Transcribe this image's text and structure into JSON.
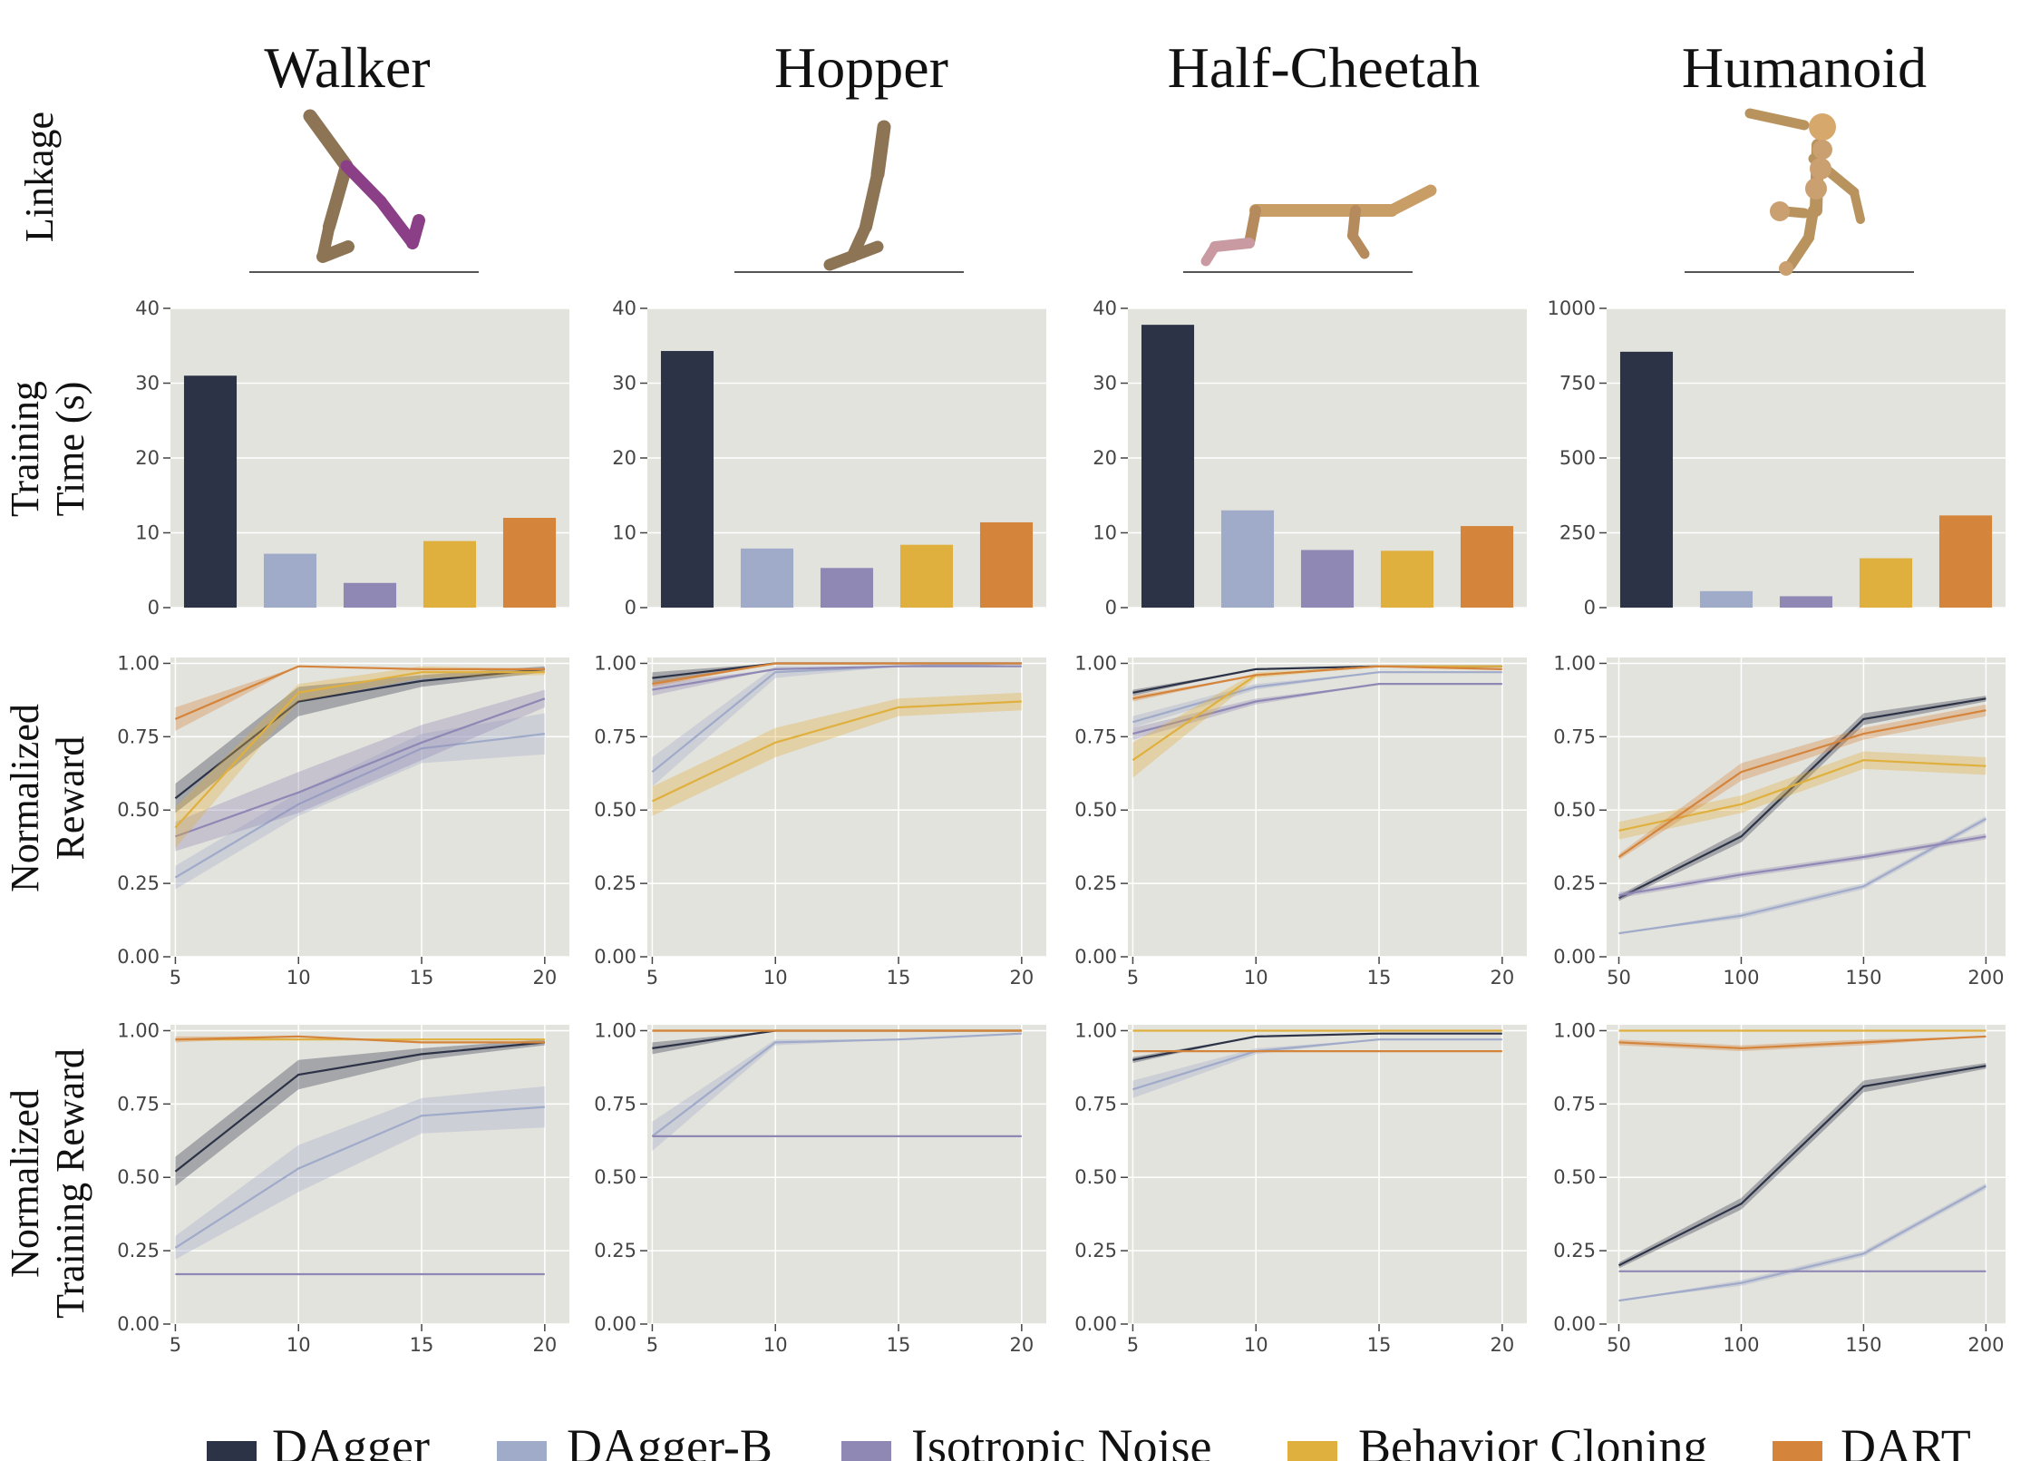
{
  "environments": [
    "Walker",
    "Hopper",
    "Half-Cheetah",
    "Humanoid"
  ],
  "row_labels": {
    "linkage": [
      "Linkage"
    ],
    "time": [
      "Training",
      "Time (s)"
    ],
    "reward": [
      "Normalized",
      "Reward"
    ],
    "train": [
      "Normalized",
      "Training Reward"
    ]
  },
  "methods": [
    "DAgger",
    "DAgger-B",
    "Isotropic Noise",
    "Behavior Cloning",
    "DART"
  ],
  "colors": {
    "DAgger": "#2d3347",
    "DAgger-B": "#a0aac9",
    "Isotropic Noise": "#8f88b5",
    "Behavior Cloning": "#e0b03e",
    "DART": "#d4843b",
    "panel_bg": "#e3e3dd",
    "grid": "#ffffff"
  },
  "chart_data": [
    {
      "type": "bar",
      "environment": "Walker",
      "metric": "Training Time (s)",
      "categories": [
        "DAgger",
        "DAgger-B",
        "Isotropic Noise",
        "Behavior Cloning",
        "DART"
      ],
      "values": [
        31,
        7.2,
        3.3,
        8.9,
        12
      ],
      "ylim": [
        0,
        40
      ],
      "yticks": [
        0,
        10,
        20,
        30,
        40
      ]
    },
    {
      "type": "bar",
      "environment": "Hopper",
      "metric": "Training Time (s)",
      "categories": [
        "DAgger",
        "DAgger-B",
        "Isotropic Noise",
        "Behavior Cloning",
        "DART"
      ],
      "values": [
        34.3,
        7.9,
        5.3,
        8.4,
        11.4
      ],
      "ylim": [
        0,
        40
      ],
      "yticks": [
        0,
        10,
        20,
        30,
        40
      ]
    },
    {
      "type": "bar",
      "environment": "Half-Cheetah",
      "metric": "Training Time (s)",
      "categories": [
        "DAgger",
        "DAgger-B",
        "Isotropic Noise",
        "Behavior Cloning",
        "DART"
      ],
      "values": [
        37.8,
        13,
        7.7,
        7.6,
        10.9
      ],
      "ylim": [
        0,
        40
      ],
      "yticks": [
        0,
        10,
        20,
        30,
        40
      ]
    },
    {
      "type": "bar",
      "environment": "Humanoid",
      "metric": "Training Time (s)",
      "categories": [
        "DAgger",
        "DAgger-B",
        "Isotropic Noise",
        "Behavior Cloning",
        "DART"
      ],
      "values": [
        855,
        55,
        38,
        165,
        308
      ],
      "ylim": [
        0,
        1000
      ],
      "yticks": [
        0,
        250,
        500,
        750,
        1000
      ]
    },
    {
      "type": "line",
      "environment": "Walker",
      "metric": "Normalized Reward",
      "x": [
        5,
        10,
        15,
        20
      ],
      "xticks": [
        5,
        10,
        15,
        20
      ],
      "xlim": [
        4.8,
        21
      ],
      "ylim": [
        0,
        1.02
      ],
      "yticks": [
        "0.00",
        "0.25",
        "0.50",
        "0.75",
        "1.00"
      ],
      "series": [
        {
          "name": "DAgger",
          "values": [
            0.54,
            0.87,
            0.94,
            0.98
          ],
          "band": [
            0.05,
            0.05,
            0.02,
            0.01
          ]
        },
        {
          "name": "DAgger-B",
          "values": [
            0.27,
            0.52,
            0.71,
            0.76
          ],
          "band": [
            0.04,
            0.04,
            0.05,
            0.07
          ]
        },
        {
          "name": "Isotropic Noise",
          "values": [
            0.41,
            0.56,
            0.73,
            0.88
          ],
          "band": [
            0.05,
            0.07,
            0.06,
            0.03
          ]
        },
        {
          "name": "Behavior Cloning",
          "values": [
            0.44,
            0.9,
            0.97,
            0.97
          ],
          "band": [
            0.07,
            0.03,
            0.02,
            0.01
          ]
        },
        {
          "name": "DART",
          "values": [
            0.81,
            0.99,
            0.98,
            0.98
          ],
          "band": [
            0.04,
            0.0,
            0.0,
            0.0
          ]
        }
      ]
    },
    {
      "type": "line",
      "environment": "Hopper",
      "metric": "Normalized Reward",
      "x": [
        5,
        10,
        15,
        20
      ],
      "xticks": [
        5,
        10,
        15,
        20
      ],
      "xlim": [
        4.8,
        21
      ],
      "ylim": [
        0,
        1.02
      ],
      "yticks": [
        "0.00",
        "0.25",
        "0.50",
        "0.75",
        "1.00"
      ],
      "series": [
        {
          "name": "DAgger",
          "values": [
            0.95,
            1.0,
            1.0,
            1.0
          ],
          "band": [
            0.02,
            0.0,
            0.0,
            0.0
          ]
        },
        {
          "name": "DAgger-B",
          "values": [
            0.63,
            0.97,
            0.99,
            1.0
          ],
          "band": [
            0.05,
            0.02,
            0.0,
            0.0
          ]
        },
        {
          "name": "Isotropic Noise",
          "values": [
            0.91,
            0.98,
            0.99,
            0.99
          ],
          "band": [
            0.02,
            0.0,
            0.0,
            0.0
          ]
        },
        {
          "name": "Behavior Cloning",
          "values": [
            0.53,
            0.73,
            0.85,
            0.87
          ],
          "band": [
            0.05,
            0.05,
            0.03,
            0.03
          ]
        },
        {
          "name": "DART",
          "values": [
            0.93,
            1.0,
            1.0,
            1.0
          ],
          "band": [
            0.01,
            0.0,
            0.0,
            0.0
          ]
        }
      ]
    },
    {
      "type": "line",
      "environment": "Half-Cheetah",
      "metric": "Normalized Reward",
      "x": [
        5,
        10,
        15,
        20
      ],
      "xticks": [
        5,
        10,
        15,
        20
      ],
      "xlim": [
        4.8,
        21
      ],
      "ylim": [
        0,
        1.02
      ],
      "yticks": [
        "0.00",
        "0.25",
        "0.50",
        "0.75",
        "1.00"
      ],
      "series": [
        {
          "name": "DAgger",
          "values": [
            0.9,
            0.98,
            0.99,
            0.99
          ],
          "band": [
            0.01,
            0.0,
            0.0,
            0.0
          ]
        },
        {
          "name": "DAgger-B",
          "values": [
            0.8,
            0.92,
            0.97,
            0.97
          ],
          "band": [
            0.02,
            0.01,
            0.0,
            0.0
          ]
        },
        {
          "name": "Isotropic Noise",
          "values": [
            0.76,
            0.87,
            0.93,
            0.93
          ],
          "band": [
            0.02,
            0.01,
            0.0,
            0.0
          ]
        },
        {
          "name": "Behavior Cloning",
          "values": [
            0.67,
            0.96,
            0.99,
            0.99
          ],
          "band": [
            0.06,
            0.01,
            0.0,
            0.0
          ]
        },
        {
          "name": "DART",
          "values": [
            0.88,
            0.96,
            0.99,
            0.98
          ],
          "band": [
            0.01,
            0.0,
            0.0,
            0.0
          ]
        }
      ]
    },
    {
      "type": "line",
      "environment": "Humanoid",
      "metric": "Normalized Reward",
      "x": [
        50,
        100,
        150,
        200
      ],
      "xticks": [
        50,
        100,
        150,
        200
      ],
      "xlim": [
        45,
        208
      ],
      "ylim": [
        0,
        1.02
      ],
      "yticks": [
        "0.00",
        "0.25",
        "0.50",
        "0.75",
        "1.00"
      ],
      "series": [
        {
          "name": "DAgger",
          "values": [
            0.2,
            0.41,
            0.81,
            0.88
          ],
          "band": [
            0.01,
            0.02,
            0.02,
            0.01
          ]
        },
        {
          "name": "DAgger-B",
          "values": [
            0.08,
            0.14,
            0.24,
            0.47
          ],
          "band": [
            0.0,
            0.01,
            0.01,
            0.01
          ]
        },
        {
          "name": "Isotropic Noise",
          "values": [
            0.21,
            0.28,
            0.34,
            0.41
          ],
          "band": [
            0.01,
            0.01,
            0.01,
            0.01
          ]
        },
        {
          "name": "Behavior Cloning",
          "values": [
            0.43,
            0.52,
            0.67,
            0.65
          ],
          "band": [
            0.03,
            0.03,
            0.03,
            0.03
          ]
        },
        {
          "name": "DART",
          "values": [
            0.34,
            0.63,
            0.76,
            0.84
          ],
          "band": [
            0.01,
            0.03,
            0.02,
            0.02
          ]
        }
      ]
    },
    {
      "type": "line",
      "environment": "Walker",
      "metric": "Normalized Training Reward",
      "x": [
        5,
        10,
        15,
        20
      ],
      "xticks": [
        5,
        10,
        15,
        20
      ],
      "xlim": [
        4.8,
        21
      ],
      "ylim": [
        0,
        1.02
      ],
      "yticks": [
        "0.00",
        "0.25",
        "0.50",
        "0.75",
        "1.00"
      ],
      "series": [
        {
          "name": "DAgger",
          "values": [
            0.52,
            0.85,
            0.92,
            0.96
          ],
          "band": [
            0.05,
            0.05,
            0.02,
            0.01
          ]
        },
        {
          "name": "DAgger-B",
          "values": [
            0.26,
            0.53,
            0.71,
            0.74
          ],
          "band": [
            0.04,
            0.08,
            0.06,
            0.07
          ]
        },
        {
          "name": "Isotropic Noise",
          "values": [
            0.17,
            0.17,
            0.17,
            0.17
          ],
          "band": [
            0.0,
            0.0,
            0.0,
            0.0
          ]
        },
        {
          "name": "Behavior Cloning",
          "values": [
            0.97,
            0.97,
            0.97,
            0.97
          ],
          "band": [
            0.0,
            0.0,
            0.0,
            0.0
          ]
        },
        {
          "name": "DART",
          "values": [
            0.97,
            0.98,
            0.96,
            0.96
          ],
          "band": [
            0.01,
            0.0,
            0.0,
            0.0
          ]
        }
      ]
    },
    {
      "type": "line",
      "environment": "Hopper",
      "metric": "Normalized Training Reward",
      "x": [
        5,
        10,
        15,
        20
      ],
      "xticks": [
        5,
        10,
        15,
        20
      ],
      "xlim": [
        4.8,
        21
      ],
      "ylim": [
        0,
        1.02
      ],
      "yticks": [
        "0.00",
        "0.25",
        "0.50",
        "0.75",
        "1.00"
      ],
      "series": [
        {
          "name": "DAgger",
          "values": [
            0.94,
            1.0,
            1.0,
            1.0
          ],
          "band": [
            0.02,
            0.0,
            0.0,
            0.0
          ]
        },
        {
          "name": "DAgger-B",
          "values": [
            0.64,
            0.96,
            0.97,
            0.99
          ],
          "band": [
            0.05,
            0.01,
            0.0,
            0.0
          ]
        },
        {
          "name": "Isotropic Noise",
          "values": [
            0.64,
            0.64,
            0.64,
            0.64
          ],
          "band": [
            0.0,
            0.0,
            0.0,
            0.0
          ]
        },
        {
          "name": "Behavior Cloning",
          "values": [
            1.0,
            1.0,
            1.0,
            1.0
          ],
          "band": [
            0.0,
            0.0,
            0.0,
            0.0
          ]
        },
        {
          "name": "DART",
          "values": [
            1.0,
            1.0,
            1.0,
            1.0
          ],
          "band": [
            0.0,
            0.0,
            0.0,
            0.0
          ]
        }
      ]
    },
    {
      "type": "line",
      "environment": "Half-Cheetah",
      "metric": "Normalized Training Reward",
      "x": [
        5,
        10,
        15,
        20
      ],
      "xticks": [
        5,
        10,
        15,
        20
      ],
      "xlim": [
        4.8,
        21
      ],
      "ylim": [
        0,
        1.02
      ],
      "yticks": [
        "0.00",
        "0.25",
        "0.50",
        "0.75",
        "1.00"
      ],
      "series": [
        {
          "name": "DAgger",
          "values": [
            0.9,
            0.98,
            0.99,
            0.99
          ],
          "band": [
            0.01,
            0.0,
            0.0,
            0.0
          ]
        },
        {
          "name": "DAgger-B",
          "values": [
            0.8,
            0.93,
            0.97,
            0.97
          ],
          "band": [
            0.03,
            0.01,
            0.0,
            0.0
          ]
        },
        {
          "name": "Behavior Cloning",
          "values": [
            1.0,
            1.0,
            1.0,
            1.0
          ],
          "band": [
            0.0,
            0.0,
            0.0,
            0.0
          ]
        },
        {
          "name": "DART",
          "values": [
            0.93,
            0.93,
            0.93,
            0.93
          ],
          "band": [
            0.0,
            0.0,
            0.0,
            0.0
          ]
        }
      ]
    },
    {
      "type": "line",
      "environment": "Humanoid",
      "metric": "Normalized Training Reward",
      "x": [
        50,
        100,
        150,
        200
      ],
      "xticks": [
        50,
        100,
        150,
        200
      ],
      "xlim": [
        45,
        208
      ],
      "ylim": [
        0,
        1.02
      ],
      "yticks": [
        "0.00",
        "0.25",
        "0.50",
        "0.75",
        "1.00"
      ],
      "series": [
        {
          "name": "DAgger",
          "values": [
            0.2,
            0.41,
            0.81,
            0.88
          ],
          "band": [
            0.01,
            0.02,
            0.02,
            0.01
          ]
        },
        {
          "name": "DAgger-B",
          "values": [
            0.08,
            0.14,
            0.24,
            0.47
          ],
          "band": [
            0.0,
            0.01,
            0.01,
            0.01
          ]
        },
        {
          "name": "Isotropic Noise",
          "values": [
            0.18,
            0.18,
            0.18,
            0.18
          ],
          "band": [
            0.0,
            0.0,
            0.0,
            0.0
          ]
        },
        {
          "name": "Behavior Cloning",
          "values": [
            1.0,
            1.0,
            1.0,
            1.0
          ],
          "band": [
            0.0,
            0.0,
            0.0,
            0.0
          ]
        },
        {
          "name": "DART",
          "values": [
            0.96,
            0.94,
            0.96,
            0.98
          ],
          "band": [
            0.01,
            0.01,
            0.01,
            0.0
          ]
        }
      ]
    }
  ]
}
